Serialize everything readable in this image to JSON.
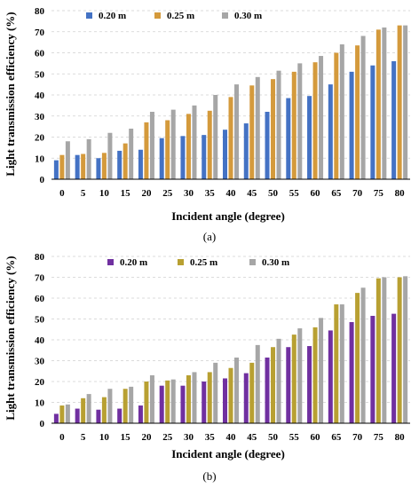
{
  "chart_data": [
    {
      "type": "bar",
      "caption": "(a)",
      "xlabel": "Incident angle (degree)",
      "ylabel": "Light transmission efficiency (%)",
      "ylim": [
        0,
        80
      ],
      "yticks": [
        0,
        10,
        20,
        30,
        40,
        50,
        60,
        70,
        80
      ],
      "categories": [
        "0",
        "5",
        "10",
        "15",
        "20",
        "25",
        "30",
        "35",
        "40",
        "45",
        "50",
        "55",
        "60",
        "65",
        "70",
        "75",
        "80"
      ],
      "grid": true,
      "legend_position": "top-left",
      "series": [
        {
          "name": "0.20 m",
          "color": "#4472C4",
          "values": [
            9,
            11.5,
            10,
            13.5,
            14,
            19.5,
            20.5,
            21,
            23.5,
            26.5,
            32,
            38.5,
            39.5,
            45,
            51,
            54,
            56
          ]
        },
        {
          "name": "0.25 m",
          "color": "#D49A3C",
          "values": [
            11.5,
            12,
            12.5,
            17,
            27,
            28,
            31,
            32.5,
            39,
            44.5,
            47.5,
            51,
            55.5,
            60,
            63.5,
            71,
            73
          ]
        },
        {
          "name": "0.30 m",
          "color": "#A6A6A6",
          "values": [
            18,
            19,
            22,
            24,
            32,
            33,
            35,
            40,
            45,
            48.5,
            51.5,
            55,
            58.5,
            64,
            68,
            72,
            73
          ]
        }
      ]
    },
    {
      "type": "bar",
      "caption": "(b)",
      "xlabel": "Incident angle (degree)",
      "ylabel": "Light transmission efficiency (%)",
      "ylim": [
        0,
        80
      ],
      "yticks": [
        0,
        10,
        20,
        30,
        40,
        50,
        60,
        70,
        80
      ],
      "categories": [
        "0",
        "5",
        "10",
        "15",
        "20",
        "25",
        "30",
        "35",
        "40",
        "45",
        "50",
        "55",
        "60",
        "65",
        "70",
        "75",
        "80"
      ],
      "grid": true,
      "legend_position": "top-center",
      "series": [
        {
          "name": "0.20 m",
          "color": "#7030A0",
          "values": [
            4.5,
            7,
            6.5,
            7,
            8.5,
            18,
            18,
            20,
            21.5,
            24,
            31.5,
            36.5,
            37,
            44.5,
            48.5,
            51.5,
            52.5
          ]
        },
        {
          "name": "0.25 m",
          "color": "#B8A032",
          "values": [
            8.5,
            12,
            12.5,
            16.5,
            20,
            20.5,
            23,
            24.5,
            26.5,
            29,
            36.5,
            42.5,
            46,
            57,
            62.5,
            69.5,
            70
          ]
        },
        {
          "name": "0.30 m",
          "color": "#A6A6A6",
          "values": [
            9,
            14,
            16.5,
            17.5,
            23,
            21,
            24.5,
            29,
            31.5,
            37.5,
            40.5,
            45.5,
            50.5,
            57,
            65,
            70,
            70.5
          ]
        }
      ]
    }
  ]
}
